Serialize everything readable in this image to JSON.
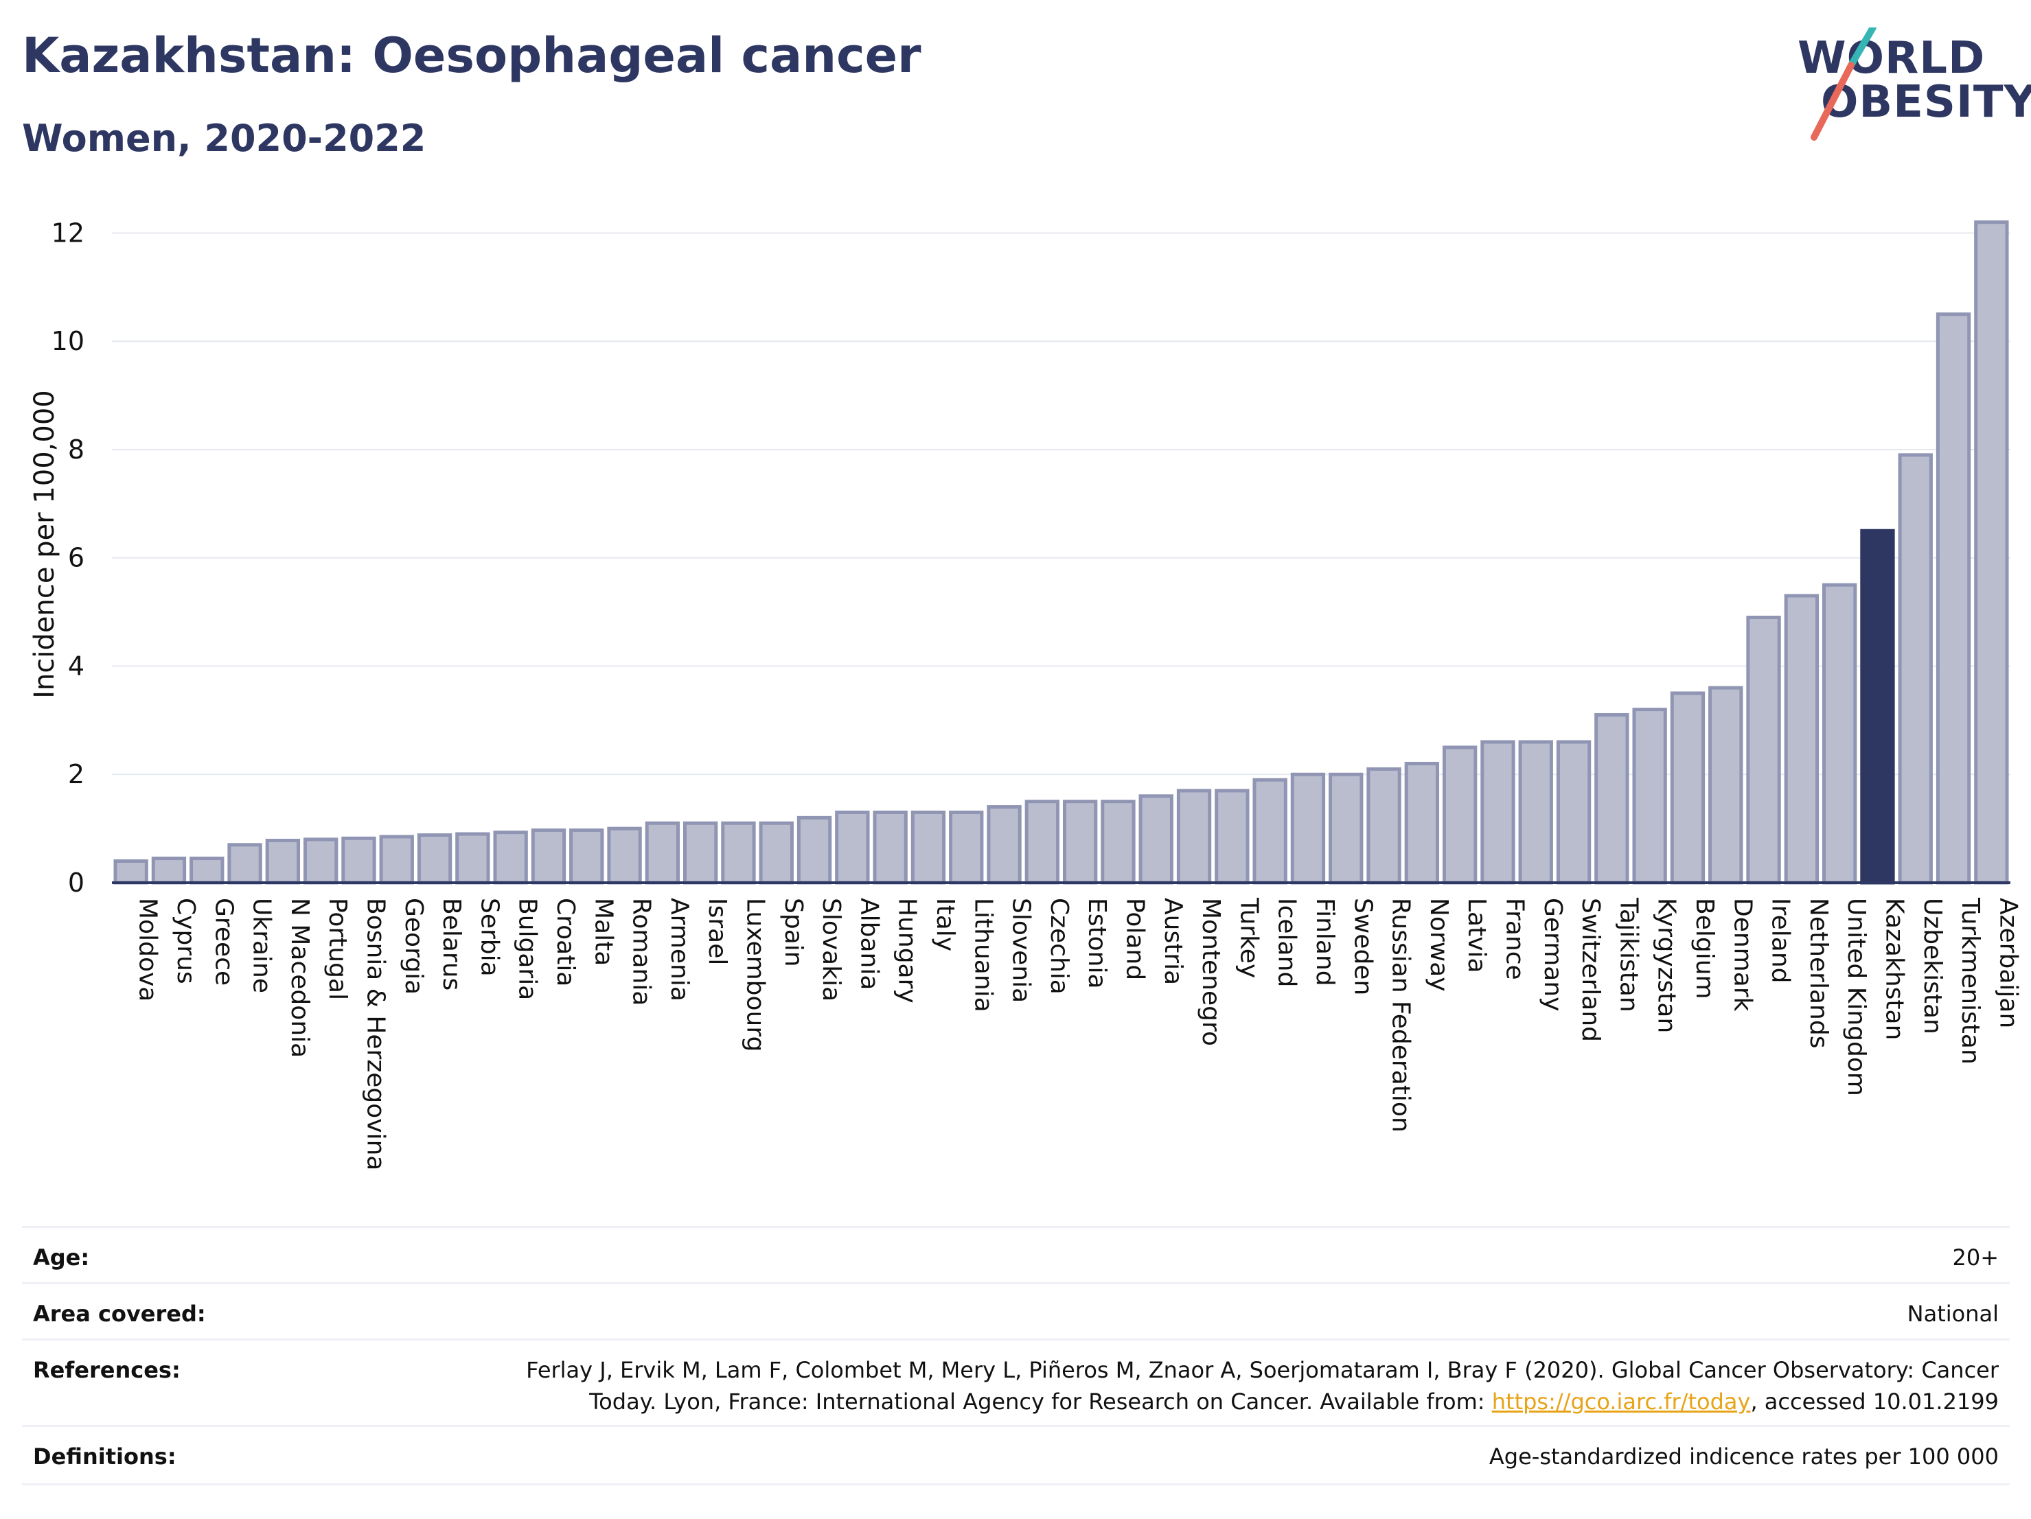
{
  "header": {
    "title": "Kazakhstan: Oesophageal cancer",
    "subtitle": "Women, 2020-2022"
  },
  "logo": {
    "line1": "WORLD",
    "line2": "OBESITY",
    "accent_teal": "#35b6b4",
    "accent_red": "#e8685a"
  },
  "colors": {
    "bar": "#b9bdce",
    "bar_border": "#8f95b3",
    "highlight": "#2d3762",
    "axis_text": "#111111",
    "grid": "#e6e8ef"
  },
  "chart_data": {
    "type": "bar",
    "ylabel": "Incidence per 100,000",
    "ylim": [
      0,
      12.5
    ],
    "yticks": [
      0,
      2,
      4,
      6,
      8,
      10,
      12
    ],
    "grid": true,
    "highlight": "Kazakhstan",
    "categories": [
      "Moldova",
      "Cyprus",
      "Greece",
      "Ukraine",
      "N Macedonia",
      "Portugal",
      "Bosnia & Herzegovina",
      "Georgia",
      "Belarus",
      "Serbia",
      "Bulgaria",
      "Croatia",
      "Malta",
      "Romania",
      "Armenia",
      "Israel",
      "Luxembourg",
      "Spain",
      "Slovakia",
      "Albania",
      "Hungary",
      "Italy",
      "Lithuania",
      "Slovenia",
      "Czechia",
      "Estonia",
      "Poland",
      "Austria",
      "Montenegro",
      "Turkey",
      "Iceland",
      "Finland",
      "Sweden",
      "Russian Federation",
      "Norway",
      "Latvia",
      "France",
      "Germany",
      "Switzerland",
      "Tajikistan",
      "Kyrgyzstan",
      "Belgium",
      "Denmark",
      "Ireland",
      "Netherlands",
      "United Kingdom",
      "Kazakhstan",
      "Uzbekistan",
      "Turkmenistan",
      "Azerbaijan"
    ],
    "values": [
      0.4,
      0.45,
      0.45,
      0.7,
      0.78,
      0.8,
      0.82,
      0.85,
      0.88,
      0.9,
      0.93,
      0.97,
      0.97,
      1.0,
      1.1,
      1.1,
      1.1,
      1.1,
      1.2,
      1.3,
      1.3,
      1.3,
      1.3,
      1.4,
      1.5,
      1.5,
      1.5,
      1.6,
      1.7,
      1.7,
      1.9,
      2.0,
      2.0,
      2.1,
      2.2,
      2.5,
      2.6,
      2.6,
      2.6,
      3.1,
      3.2,
      3.5,
      3.6,
      4.9,
      5.3,
      5.5,
      6.5,
      7.9,
      10.5,
      12.2
    ]
  },
  "meta": {
    "age_label": "Age:",
    "age_value": "20+",
    "area_label": "Area covered:",
    "area_value": "National",
    "references_label": "References:",
    "references_line1": "Ferlay J, Ervik M, Lam F, Colombet M, Mery L, Piñeros M, Znaor A, Soerjomataram I, Bray F (2020). Global Cancer Observatory: Cancer",
    "references_line2_pre": "Today. Lyon, France: International Agency for Research on Cancer. Available from: ",
    "references_link": "https://gco.iarc.fr/today",
    "references_line2_post": ", accessed 10.01.2199",
    "definitions_label": "Definitions:",
    "definitions_value": "Age-standardized indicence rates per 100 000"
  }
}
